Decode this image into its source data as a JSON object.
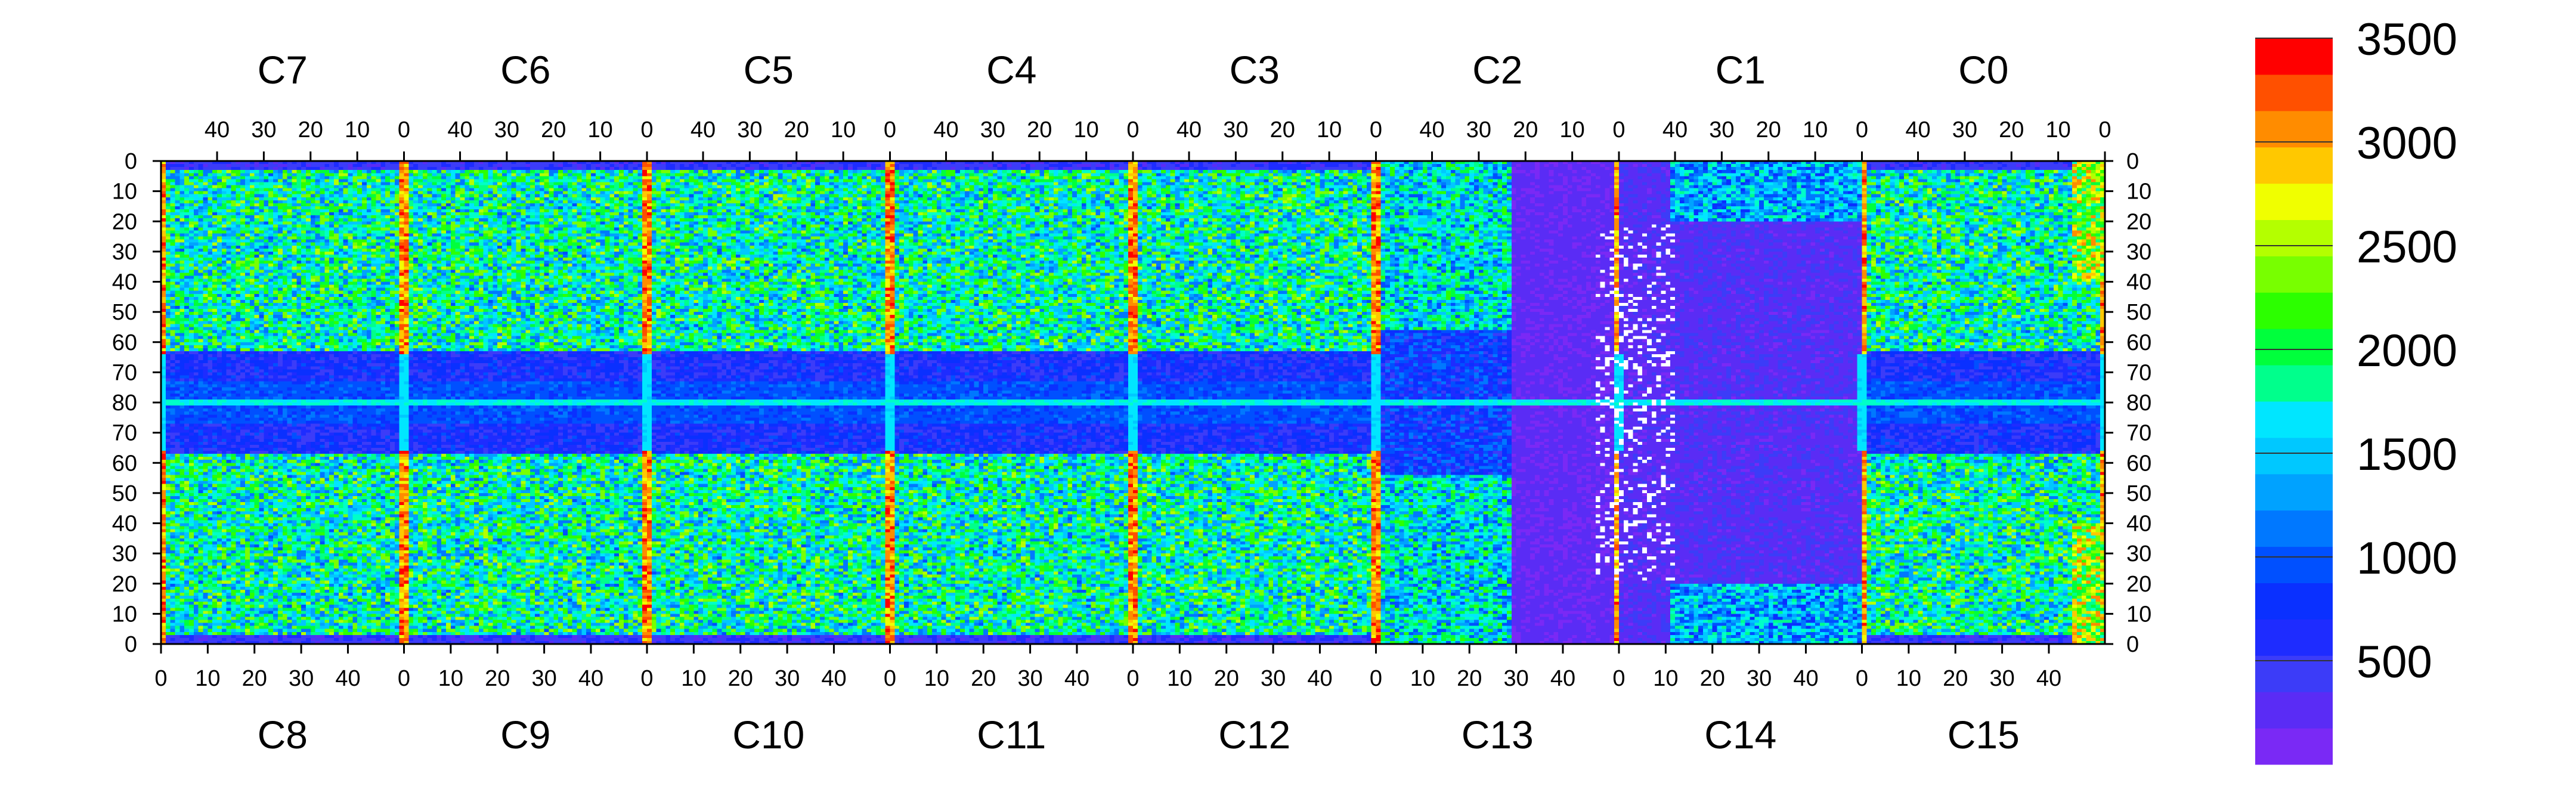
{
  "chart_data": {
    "type": "heatmap",
    "title": "",
    "xlabel": "",
    "ylabel": "",
    "top_chip_labels": [
      "C7",
      "C6",
      "C5",
      "C4",
      "C3",
      "C2",
      "C1",
      "C0"
    ],
    "bottom_chip_labels": [
      "C8",
      "C9",
      "C10",
      "C11",
      "C12",
      "C13",
      "C14",
      "C15"
    ],
    "top_axis_ticks": [
      "40",
      "30",
      "20",
      "10",
      "0"
    ],
    "bottom_axis_ticks": [
      "0",
      "10",
      "20",
      "30",
      "40"
    ],
    "y_ticks_top_half": [
      "0",
      "10",
      "20",
      "30",
      "40",
      "50",
      "60",
      "70",
      "80"
    ],
    "y_ticks_bottom_half": [
      "70",
      "60",
      "50",
      "40",
      "30",
      "20",
      "10",
      "0"
    ],
    "chip_columns": 52,
    "chip_rows": 80,
    "zlim": [
      0,
      3500
    ],
    "colorbar": {
      "levels": 20,
      "tick_labels": [
        "3500",
        "3000",
        "2500",
        "2000",
        "1500",
        "1000",
        "500"
      ],
      "tick_values": [
        3500,
        3000,
        2500,
        2000,
        1500,
        1000,
        500
      ]
    },
    "colors": {
      "min": "#7b2cf2",
      "max": "#ff0000",
      "palette": [
        "#7a29f5",
        "#5a2cf5",
        "#3c3cf8",
        "#1e2cff",
        "#0a30ff",
        "#0050ff",
        "#0078ff",
        "#00a2ff",
        "#00c8ff",
        "#00e6ff",
        "#00ffc8",
        "#00ff8c",
        "#00ff3c",
        "#2cff00",
        "#78ff00",
        "#b4ff00",
        "#f0ff00",
        "#ffc800",
        "#ff8c00",
        "#ff5000",
        "#ff0000"
      ]
    },
    "masked_region": "C13/C14 center (white pixels)"
  }
}
